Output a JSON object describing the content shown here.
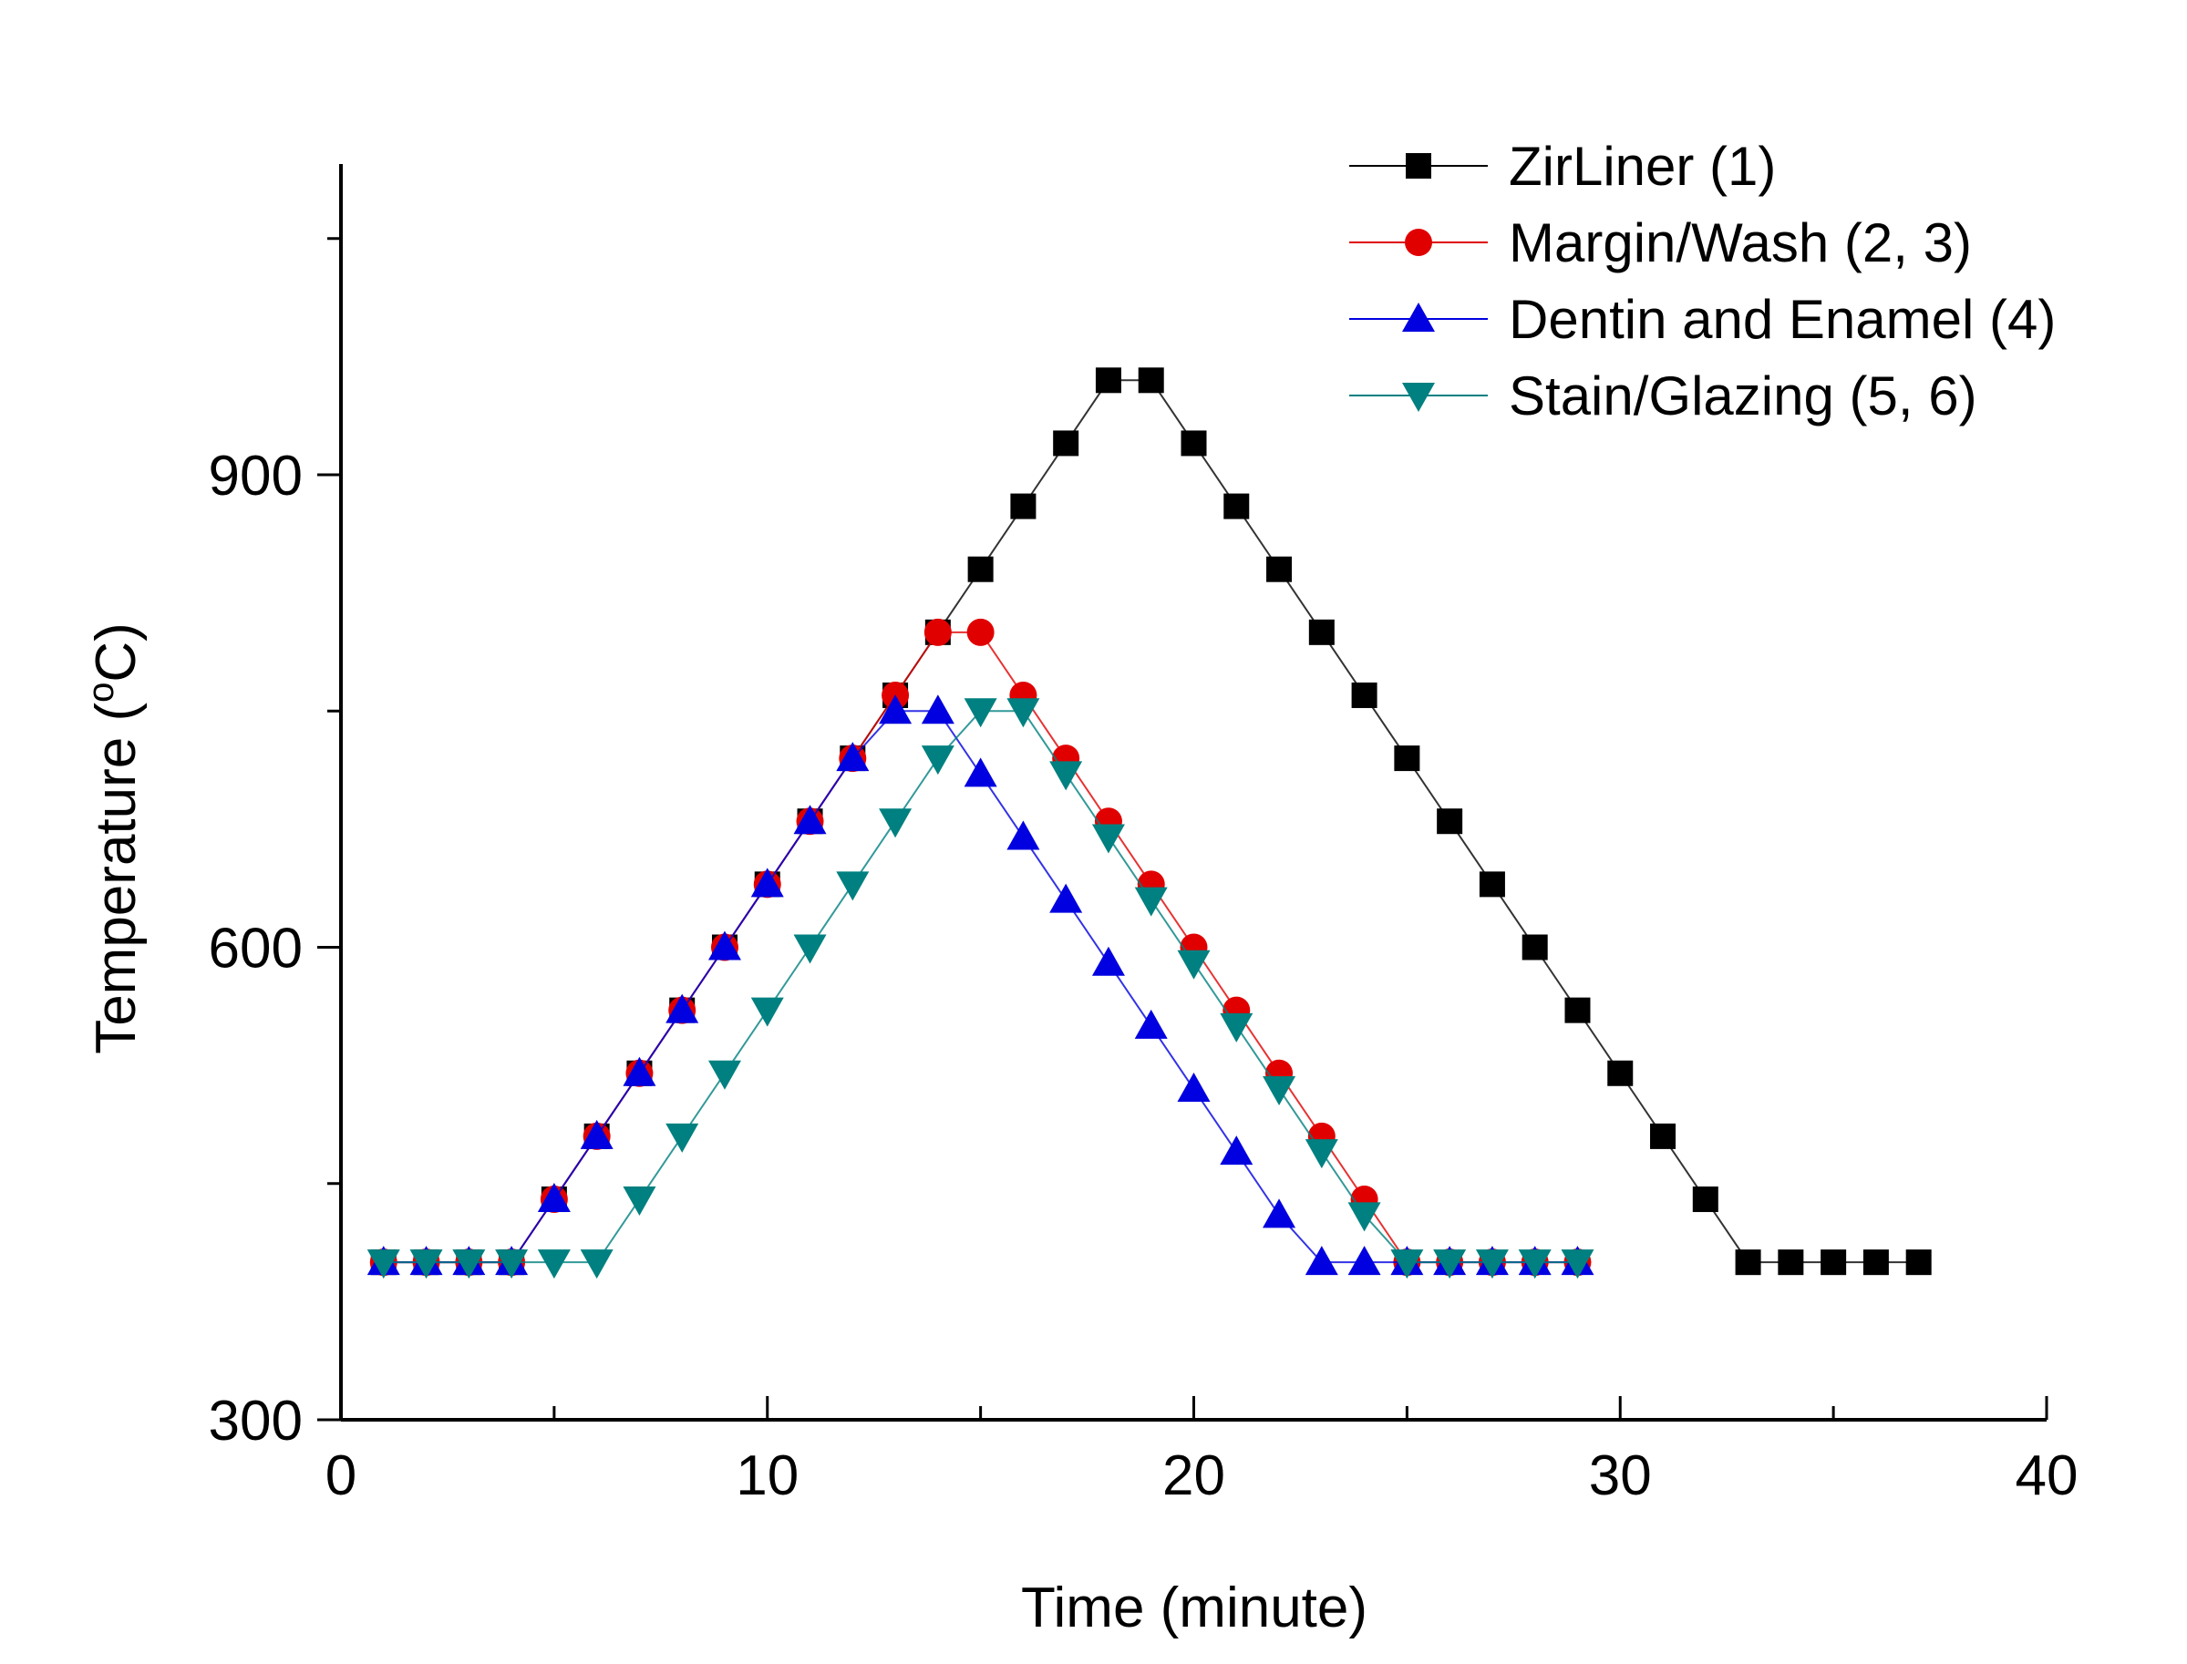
{
  "chart_data": {
    "type": "line",
    "xlabel": "Time (minute)",
    "ylabel": {
      "prefix": "Temperature (",
      "superscript": "o",
      "suffix": "C)"
    },
    "xlim": [
      0,
      40
    ],
    "ylim": [
      300,
      1090
    ],
    "xticks": [
      0,
      10,
      20,
      30,
      40
    ],
    "xtick_labels": [
      "0",
      "10",
      "20",
      "30",
      "40"
    ],
    "yticks": [
      300,
      600,
      900
    ],
    "ytick_labels": [
      "300",
      "600",
      "900"
    ],
    "legend_position": "top-right",
    "grid": false,
    "series": [
      {
        "name": "ZirLiner (1)",
        "marker": "square",
        "color": "#000000",
        "x": [
          1,
          2,
          3,
          4,
          5,
          6,
          7,
          8,
          9,
          10,
          11,
          12,
          13,
          14,
          15,
          16,
          17,
          18,
          19,
          20,
          21,
          22,
          23,
          24,
          25,
          26,
          27,
          28,
          29,
          30,
          31,
          32,
          33,
          34,
          35,
          36,
          37
        ],
        "y": [
          400,
          400,
          400,
          400,
          440,
          480,
          520,
          560,
          600,
          640,
          680,
          720,
          760,
          800,
          840,
          880,
          920,
          960,
          960,
          920,
          880,
          840,
          800,
          760,
          720,
          680,
          640,
          600,
          560,
          520,
          480,
          440,
          400,
          400,
          400,
          400,
          400
        ]
      },
      {
        "name": "Margin/Wash (2, 3)",
        "marker": "circle",
        "color": "#e00000",
        "x": [
          1,
          2,
          3,
          4,
          5,
          6,
          7,
          8,
          9,
          10,
          11,
          12,
          13,
          14,
          15,
          16,
          17,
          18,
          19,
          20,
          21,
          22,
          23,
          24,
          25,
          26,
          27,
          28,
          29
        ],
        "y": [
          400,
          400,
          400,
          400,
          440,
          480,
          520,
          560,
          600,
          640,
          680,
          720,
          760,
          800,
          800,
          760,
          720,
          680,
          640,
          600,
          560,
          520,
          480,
          440,
          400,
          400,
          400,
          400,
          400
        ]
      },
      {
        "name": "Dentin and Enamel (4)",
        "marker": "triangle-up",
        "color": "#0000e0",
        "x": [
          1,
          2,
          3,
          4,
          5,
          6,
          7,
          8,
          9,
          10,
          11,
          12,
          13,
          14,
          15,
          16,
          17,
          18,
          19,
          20,
          21,
          22,
          23,
          24,
          25,
          26,
          27,
          28,
          29
        ],
        "y": [
          400,
          400,
          400,
          400,
          440,
          480,
          520,
          560,
          600,
          640,
          680,
          720,
          750,
          750,
          710,
          670,
          630,
          590,
          550,
          510,
          470,
          430,
          400,
          400,
          400,
          400,
          400,
          400,
          400
        ]
      },
      {
        "name": "Stain/Glazing (5, 6)",
        "marker": "triangle-down",
        "color": "#008080",
        "x": [
          1,
          2,
          3,
          4,
          5,
          6,
          7,
          8,
          9,
          10,
          11,
          12,
          13,
          14,
          15,
          16,
          17,
          18,
          19,
          20,
          21,
          22,
          23,
          24,
          25,
          26,
          27,
          28,
          29
        ],
        "y": [
          400,
          400,
          400,
          400,
          400,
          400,
          440,
          480,
          520,
          560,
          600,
          640,
          680,
          720,
          750,
          750,
          710,
          670,
          630,
          590,
          550,
          510,
          470,
          430,
          400,
          400,
          400,
          400,
          400
        ]
      }
    ]
  }
}
